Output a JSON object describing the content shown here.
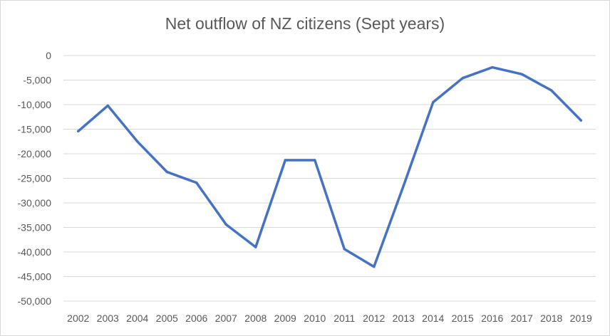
{
  "chart_data": {
    "type": "line",
    "title": "Net outflow of NZ citizens (Sept years)",
    "xlabel": "",
    "ylabel": "",
    "ylim": [
      -50000,
      0
    ],
    "y_ticks": [
      0,
      -5000,
      -10000,
      -15000,
      -20000,
      -25000,
      -30000,
      -35000,
      -40000,
      -45000,
      -50000
    ],
    "y_tick_labels": [
      "0",
      "-5,000",
      "-10,000",
      "-15,000",
      "-20,000",
      "-25,000",
      "-30,000",
      "-35,000",
      "-40,000",
      "-45,000",
      "-50,000"
    ],
    "grid": true,
    "legend": "none",
    "categories": [
      "2002",
      "2003",
      "2004",
      "2005",
      "2006",
      "2007",
      "2008",
      "2009",
      "2010",
      "2011",
      "2012",
      "2013",
      "2014",
      "2015",
      "2016",
      "2017",
      "2018",
      "2019"
    ],
    "series": [
      {
        "color": "#4472c4",
        "values": [
          -15400,
          -10200,
          -17500,
          -23700,
          -25900,
          -34400,
          -39000,
          -21300,
          -21300,
          -39400,
          -43000,
          -26500,
          -9500,
          -4600,
          -2400,
          -3800,
          -7100,
          -13200
        ]
      }
    ]
  },
  "colors": {
    "line": "#4472c4",
    "grid": "#d9d9d9",
    "text": "#595959"
  }
}
